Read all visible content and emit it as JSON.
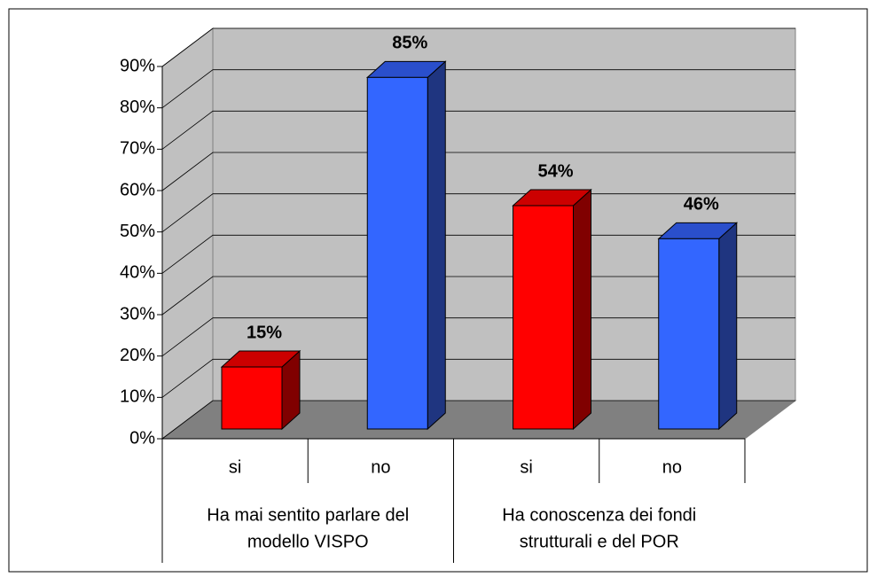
{
  "chart_data": {
    "type": "bar3d",
    "categories": [
      "si",
      "no",
      "si",
      "no"
    ],
    "values": [
      15,
      85,
      54,
      46
    ],
    "value_labels": [
      "15%",
      "85%",
      "54%",
      "46%"
    ],
    "colors": [
      "#ff0000",
      "#3366ff",
      "#ff0000",
      "#3366ff"
    ],
    "groups": [
      {
        "lines": [
          "Ha mai sentito parlare del",
          "modello VISPO"
        ],
        "size": 2
      },
      {
        "lines": [
          "Ha conoscenza dei fondi",
          "strutturali e del POR"
        ],
        "size": 2
      }
    ],
    "ylim": [
      0,
      90
    ],
    "yticks": [
      {
        "value": 0,
        "label": "0%"
      },
      {
        "value": 10,
        "label": "10%"
      },
      {
        "value": 20,
        "label": "20%"
      },
      {
        "value": 30,
        "label": "30%"
      },
      {
        "value": 40,
        "label": "40%"
      },
      {
        "value": 50,
        "label": "50%"
      },
      {
        "value": 60,
        "label": "60%"
      },
      {
        "value": 70,
        "label": "70%"
      },
      {
        "value": 80,
        "label": "80%"
      },
      {
        "value": 90,
        "label": "90%"
      }
    ],
    "grid": true
  }
}
